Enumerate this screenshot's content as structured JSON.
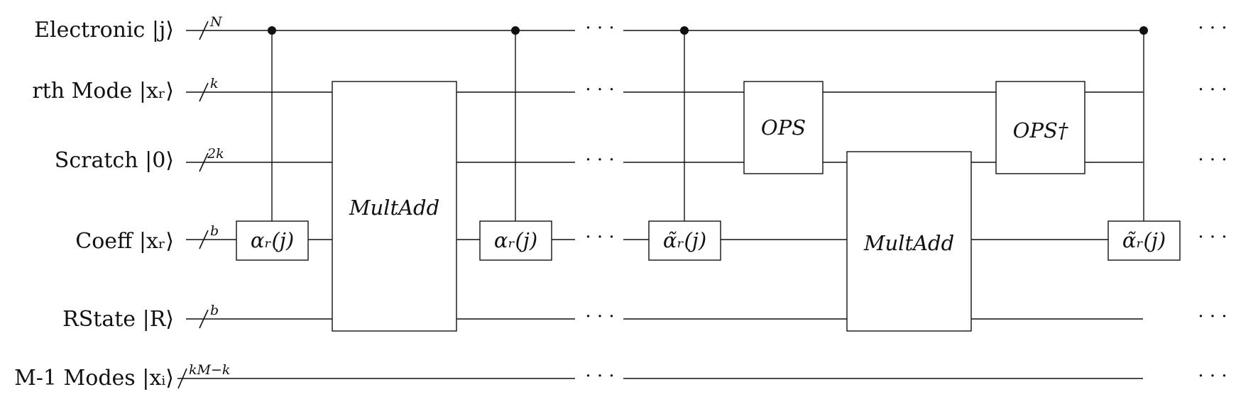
{
  "qubits": [
    {
      "label": "Electronic |j⟩",
      "reg": "N"
    },
    {
      "label": "rth Mode |xᵣ⟩",
      "reg": "k"
    },
    {
      "label": "Scratch |0⟩",
      "reg": "2k"
    },
    {
      "label": "Coeff |xᵣ⟩",
      "reg": "b"
    },
    {
      "label": "RState |R⟩",
      "reg": "b"
    },
    {
      "label": "M-1 Modes |xᵢ⟩",
      "reg": "kM−k"
    }
  ],
  "gates": {
    "alpha1": "αᵣ(j)",
    "multadd1": "MultAdd",
    "alpha2": "αᵣ(j)",
    "alphatilde1": "α̃ᵣ(j)",
    "ops": "OPS",
    "multadd2": "MultAdd",
    "opsdagger": "OPS†",
    "alphatilde2": "α̃ᵣ(j)"
  },
  "ellipsis": "· · ·"
}
